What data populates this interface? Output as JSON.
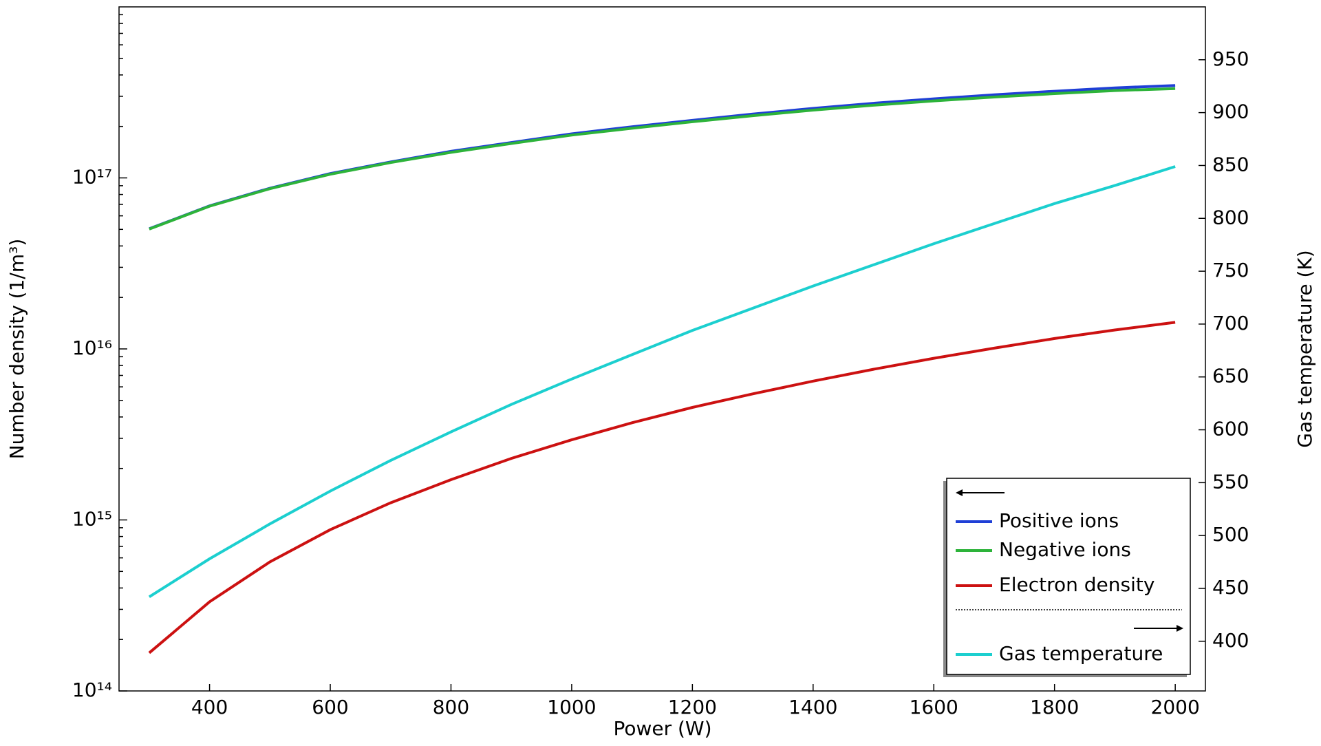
{
  "chart_data": {
    "type": "line",
    "x_label": "Power (W)",
    "y_label": "Number density (1/m³)",
    "y2_label": "Gas temperature (K)",
    "x": [
      300,
      400,
      500,
      600,
      700,
      800,
      900,
      1000,
      1100,
      1200,
      1300,
      1400,
      1500,
      1600,
      1700,
      1800,
      1900,
      2000
    ],
    "series": [
      {
        "name": "Positive ions",
        "color": "#1f3fd6",
        "values": [
          5.04e+16,
          6.86e+16,
          8.7e+16,
          1.06e+17,
          1.24e+17,
          1.43e+17,
          1.61e+17,
          1.81e+17,
          1.99e+17,
          2.17e+17,
          2.36e+17,
          2.55e+17,
          2.73e+17,
          2.9e+17,
          3.06e+17,
          3.21e+17,
          3.36e+17,
          3.47e+17
        ]
      },
      {
        "name": "Negative ions",
        "color": "#2db33a",
        "values": [
          5.02e+16,
          6.83e+16,
          8.65e+16,
          1.05e+17,
          1.23e+17,
          1.41e+17,
          1.59e+17,
          1.78e+17,
          1.95e+17,
          2.13e+17,
          2.31e+17,
          2.49e+17,
          2.66e+17,
          2.82e+17,
          2.97e+17,
          3.11e+17,
          3.24e+17,
          3.33e+17
        ]
      },
      {
        "name": "Electron density",
        "color": "#cc1111",
        "values": [
          167000000000000.0,
          332000000000000.0,
          568000000000000.0,
          877000000000000.0,
          1260000000000000.0,
          1720000000000000.0,
          2290000000000000.0,
          2940000000000000.0,
          3700000000000000.0,
          4550000000000000.0,
          5460000000000000.0,
          6480000000000000.0,
          7600000000000000.0,
          8820000000000000.0,
          1.01e+16,
          1.15e+16,
          1.29e+16,
          1.43e+16
        ]
      },
      {
        "name": "Gas temperature",
        "color": "#1ccfcf",
        "axis": "y2",
        "values": [
          442,
          478,
          511,
          542,
          571,
          598,
          624,
          648,
          671,
          694,
          715,
          736,
          756,
          776,
          795,
          814,
          831,
          849
        ]
      }
    ],
    "xlim": [
      250,
      2050
    ],
    "xticks": [
      400,
      600,
      800,
      1000,
      1200,
      1400,
      1600,
      1800,
      2000
    ],
    "ylim": [
      100000000000000.0,
      1e+18
    ],
    "ylog": true,
    "yticks": [
      {
        "value": 100000000000000.0,
        "label": "10¹⁴"
      },
      {
        "value": 1000000000000000.0,
        "label": "10¹⁵"
      },
      {
        "value": 1e+16,
        "label": "10¹⁶"
      },
      {
        "value": 1e+17,
        "label": "10¹⁷"
      }
    ],
    "y2lim": [
      353,
      1000
    ],
    "y2ticks": [
      400,
      450,
      500,
      550,
      600,
      650,
      700,
      750,
      800,
      850,
      900,
      950
    ],
    "legend": "lower right"
  }
}
